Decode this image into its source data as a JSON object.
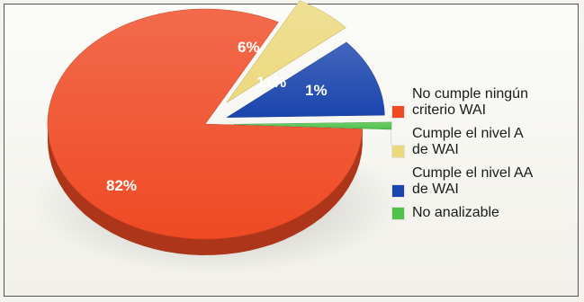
{
  "chart_data": {
    "type": "pie",
    "title": "",
    "style": "3d-exploded",
    "legend_position": "right",
    "slices": [
      {
        "label": "No cumple ningún criterio WAI",
        "value": 82,
        "display": "82%",
        "color": "#ef4a24"
      },
      {
        "label": "Cumple el nivel A de WAI",
        "value": 6,
        "display": "6%",
        "color": "#ecd97e"
      },
      {
        "label": "Cumple el nivel AA de WAI",
        "value": 11,
        "display": "11%",
        "color": "#1a45ad"
      },
      {
        "label": "No analizable",
        "value": 1,
        "display": "1%",
        "color": "#4fc24a"
      }
    ]
  },
  "legend": {
    "items": [
      {
        "text": "No cumple ningún\ncriterio WAI",
        "color": "#ef4a24"
      },
      {
        "text": "Cumple el nivel A\nde WAI",
        "color": "#ecd97e"
      },
      {
        "text": "Cumple el nivel AA\nde WAI",
        "color": "#1a45ad"
      },
      {
        "text": "No analizable",
        "color": "#4fc24a"
      }
    ]
  }
}
